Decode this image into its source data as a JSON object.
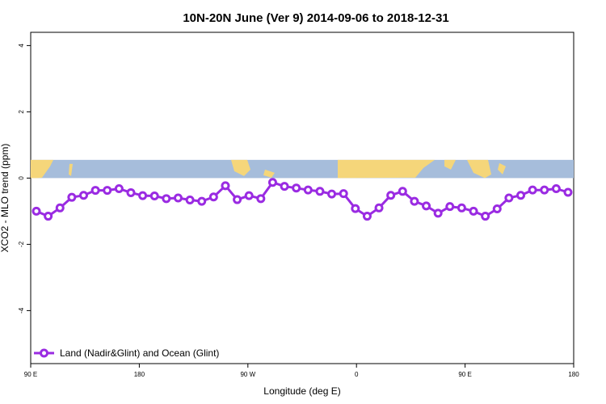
{
  "chart_data": {
    "type": "line",
    "title": "10N-20N June (Ver 9)   2014-09-06 to 2018-12-31",
    "xlabel": "Longitude (deg E)",
    "ylabel": "XCO2 - MLO trend (ppm)",
    "x_tick_labels": [
      "90 E",
      "180",
      "90 W",
      "0",
      "90 E",
      "180"
    ],
    "y_tick_labels": [
      "-4",
      "-2",
      "0",
      "2",
      "4"
    ],
    "ylim": [
      -5.6,
      4.4
    ],
    "grid": false,
    "legend_position": "bottom-left",
    "series": [
      {
        "name": "Land (Nadir&Glint) and Ocean (Glint)",
        "color": "#9a2be2",
        "values": [
          -1.0,
          -1.15,
          -0.9,
          -0.58,
          -0.52,
          -0.37,
          -0.37,
          -0.32,
          -0.44,
          -0.53,
          -0.54,
          -0.62,
          -0.6,
          -0.66,
          -0.7,
          -0.57,
          -0.23,
          -0.65,
          -0.53,
          -0.62,
          -0.13,
          -0.25,
          -0.3,
          -0.36,
          -0.4,
          -0.48,
          -0.47,
          -0.92,
          -1.15,
          -0.9,
          -0.52,
          -0.4,
          -0.7,
          -0.84,
          -1.06,
          -0.86,
          -0.9,
          -1.0,
          -1.15,
          -0.93,
          -0.6,
          -0.52,
          -0.36,
          -0.36,
          -0.32,
          -0.43
        ]
      }
    ],
    "colors": {
      "ocean": "#a6bddb",
      "land": "#f5d67a",
      "series": "#9a2be2"
    }
  }
}
